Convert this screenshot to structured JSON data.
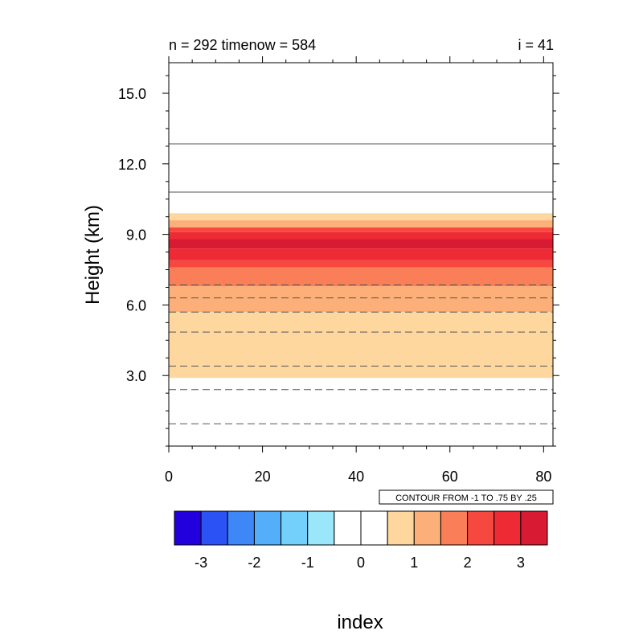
{
  "chart_data": {
    "type": "heatmap",
    "title_left": "n = 292 timenow = 584",
    "title_right": "i = 41",
    "xlabel": "index",
    "ylabel": "Height (km)",
    "xlim": [
      0,
      82
    ],
    "ylim": [
      0.0,
      16.3
    ],
    "x_ticks": [
      {
        "value": 0,
        "label": "0"
      },
      {
        "value": 20,
        "label": "20"
      },
      {
        "value": 40,
        "label": "40"
      },
      {
        "value": 60,
        "label": "60"
      },
      {
        "value": 80,
        "label": "80"
      }
    ],
    "y_ticks": [
      {
        "value": 3.0,
        "label": "3.0"
      },
      {
        "value": 6.0,
        "label": "6.0"
      },
      {
        "value": 9.0,
        "label": "9.0"
      },
      {
        "value": 12.0,
        "label": "12.0"
      },
      {
        "value": 15.0,
        "label": "15.0"
      }
    ],
    "fill_bands": [
      {
        "from": 2.9,
        "to": 4.8,
        "level": 1
      },
      {
        "from": 4.8,
        "to": 5.7,
        "level": 1
      },
      {
        "from": 5.7,
        "to": 6.8,
        "level": 2
      },
      {
        "from": 6.8,
        "to": 7.6,
        "level": 3
      },
      {
        "from": 7.6,
        "to": 7.9,
        "level": 4
      },
      {
        "from": 7.9,
        "to": 8.4,
        "level": 5
      },
      {
        "from": 8.4,
        "to": 8.8,
        "level": 6
      },
      {
        "from": 8.8,
        "to": 9.1,
        "level": 5
      },
      {
        "from": 9.1,
        "to": 9.3,
        "level": 4
      },
      {
        "from": 9.3,
        "to": 9.6,
        "level": 2
      },
      {
        "from": 9.6,
        "to": 9.9,
        "level": 1
      }
    ],
    "contour_lines": [
      {
        "value": 0.95,
        "style": "dashed"
      },
      {
        "value": 2.4,
        "style": "dashed"
      },
      {
        "value": 3.4,
        "style": "dashed"
      },
      {
        "value": 4.85,
        "style": "dashed"
      },
      {
        "value": 5.7,
        "style": "dashed"
      },
      {
        "value": 6.3,
        "style": "dashed"
      },
      {
        "value": 6.85,
        "style": "dashed"
      },
      {
        "value": 10.8,
        "style": "solid"
      },
      {
        "value": 12.85,
        "style": "solid"
      }
    ],
    "info_label": "CONTOUR FROM -1 TO .75 BY .25",
    "colorbar": {
      "colors": [
        "#2100dd",
        "#2b52f5",
        "#3e87f7",
        "#55aef9",
        "#72d0fa",
        "#9ae7fc",
        "#ffffff",
        "#ffffff",
        "#fdd79e",
        "#fcaf78",
        "#fa7e58",
        "#f6483e",
        "#ee2a35",
        "#d81a32"
      ],
      "labels": [
        "-3",
        "-2",
        "-1",
        "0",
        "1",
        "2",
        "3"
      ]
    }
  }
}
